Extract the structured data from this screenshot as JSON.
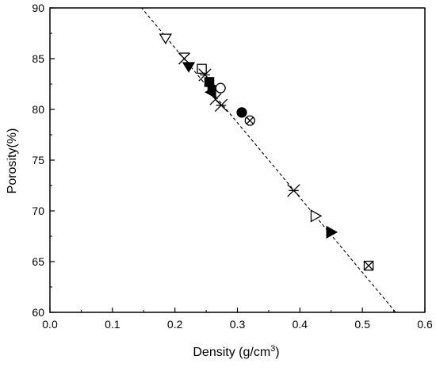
{
  "chart_data": {
    "type": "scatter",
    "title": "",
    "xlabel": "Density (g/cm",
    "xlabel_superscript": "3",
    "xlabel_suffix": ")",
    "ylabel": "Porosity(%)",
    "xlim": [
      0.0,
      0.6
    ],
    "ylim": [
      60,
      90
    ],
    "xticks": [
      "0.0",
      "0.1",
      "0.2",
      "0.3",
      "0.4",
      "0.5",
      "0.6"
    ],
    "xtick_values": [
      0.0,
      0.1,
      0.2,
      0.3,
      0.4,
      0.5,
      0.6
    ],
    "yticks": [
      "60",
      "65",
      "70",
      "75",
      "80",
      "85",
      "90"
    ],
    "ytick_values": [
      60,
      65,
      70,
      75,
      80,
      85,
      90
    ],
    "grid": false,
    "legend": "none",
    "fit_line": {
      "style": "dashed",
      "points": [
        [
          0.14,
          90.5
        ],
        [
          0.56,
          59.5
        ]
      ]
    },
    "points": [
      {
        "x": 0.185,
        "y": 87.0,
        "marker": "triangle-down-open"
      },
      {
        "x": 0.215,
        "y": 85.0,
        "marker": "x-square-open"
      },
      {
        "x": 0.222,
        "y": 84.2,
        "marker": "triangle-down-filled"
      },
      {
        "x": 0.243,
        "y": 84.0,
        "marker": "square-open"
      },
      {
        "x": 0.248,
        "y": 83.4,
        "marker": "star-x"
      },
      {
        "x": 0.255,
        "y": 82.7,
        "marker": "square-filled"
      },
      {
        "x": 0.26,
        "y": 82.2,
        "marker": "triangle-right-filled"
      },
      {
        "x": 0.273,
        "y": 82.1,
        "marker": "circle-open"
      },
      {
        "x": 0.258,
        "y": 81.7,
        "marker": "triangle-left-filled"
      },
      {
        "x": 0.265,
        "y": 81.0,
        "marker": "x-open"
      },
      {
        "x": 0.274,
        "y": 80.4,
        "marker": "star-x"
      },
      {
        "x": 0.307,
        "y": 79.7,
        "marker": "circle-filled"
      },
      {
        "x": 0.32,
        "y": 78.9,
        "marker": "circle-crossed"
      },
      {
        "x": 0.39,
        "y": 72.0,
        "marker": "star-x"
      },
      {
        "x": 0.425,
        "y": 69.5,
        "marker": "triangle-right-open"
      },
      {
        "x": 0.45,
        "y": 67.9,
        "marker": "triangle-right-filled"
      },
      {
        "x": 0.51,
        "y": 64.6,
        "marker": "square-crossed"
      }
    ]
  }
}
